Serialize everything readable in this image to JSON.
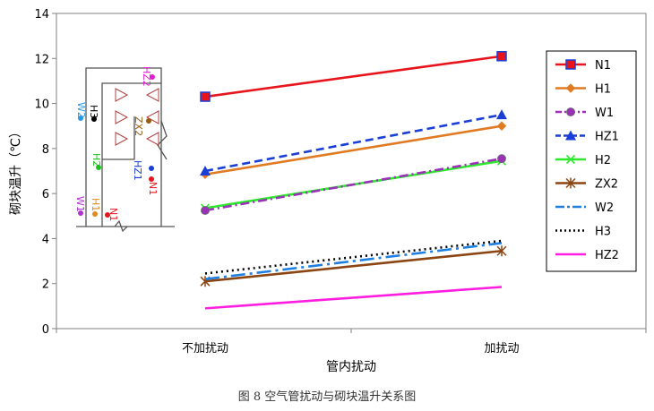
{
  "chart_data": {
    "type": "line",
    "categories": [
      "不加扰动",
      "加扰动"
    ],
    "xlabel": "管内扰动",
    "ylabel": "砌块温升（℃）",
    "ylim": [
      0,
      14
    ],
    "yticks": [
      0,
      2,
      4,
      6,
      8,
      10,
      12,
      14
    ],
    "grid": false,
    "legend_position": "right",
    "caption": "图 8  空气管扰动与砌块温升关系图",
    "series": [
      {
        "name": "N1",
        "values": [
          10.3,
          12.1
        ],
        "color": "#e8141b",
        "marker": "square",
        "dash": "solid"
      },
      {
        "name": "H1",
        "values": [
          6.85,
          9.0
        ],
        "color": "#e07b24",
        "marker": "diamond",
        "dash": "solid"
      },
      {
        "name": "W1",
        "values": [
          5.25,
          7.55
        ],
        "color": "#9a32b8",
        "marker": "circle",
        "dash": "dashdot"
      },
      {
        "name": "HZ1",
        "values": [
          7.0,
          9.5
        ],
        "color": "#1a3fd6",
        "marker": "triangle",
        "dash": "dash"
      },
      {
        "name": "H2",
        "values": [
          5.35,
          7.45
        ],
        "color": "#2ee82e",
        "marker": "x",
        "dash": "solid"
      },
      {
        "name": "ZX2",
        "values": [
          2.1,
          3.45
        ],
        "color": "#8b4513",
        "marker": "star",
        "dash": "solid"
      },
      {
        "name": "W2",
        "values": [
          2.2,
          3.8
        ],
        "color": "#1f7fe0",
        "marker": "none",
        "dash": "longdashdot"
      },
      {
        "name": "H3",
        "values": [
          2.45,
          3.9
        ],
        "color": "#000000",
        "marker": "none",
        "dash": "dot"
      },
      {
        "name": "HZ2",
        "values": [
          0.9,
          1.85
        ],
        "color": "#ff1ee0",
        "marker": "none",
        "dash": "solid"
      }
    ],
    "inset": {
      "labels": [
        {
          "text": "HZ2",
          "color": "#e020d0",
          "dot": "#e020d0"
        },
        {
          "text": "W2",
          "color": "#2a9ae0",
          "dot": "#2a9ae0"
        },
        {
          "text": "H3",
          "color": "#000000",
          "dot": "#000000"
        },
        {
          "text": "ZX2",
          "color": "#9a5a10",
          "dot": "#9a5a10"
        },
        {
          "text": "H2",
          "color": "#1ec01e",
          "dot": "#1ec01e"
        },
        {
          "text": "HZ1",
          "color": "#1a3fd6",
          "dot": "#1a3fd6"
        },
        {
          "text": "N1",
          "color": "#e8141b",
          "dot": "#e8141b"
        },
        {
          "text": "W1",
          "color": "#b030d0",
          "dot": "#b030d0"
        },
        {
          "text": "H1",
          "color": "#e08a20",
          "dot": "#e08a20"
        },
        {
          "text": "N1",
          "color": "#e8141b",
          "dot": "#e8141b"
        }
      ]
    }
  }
}
